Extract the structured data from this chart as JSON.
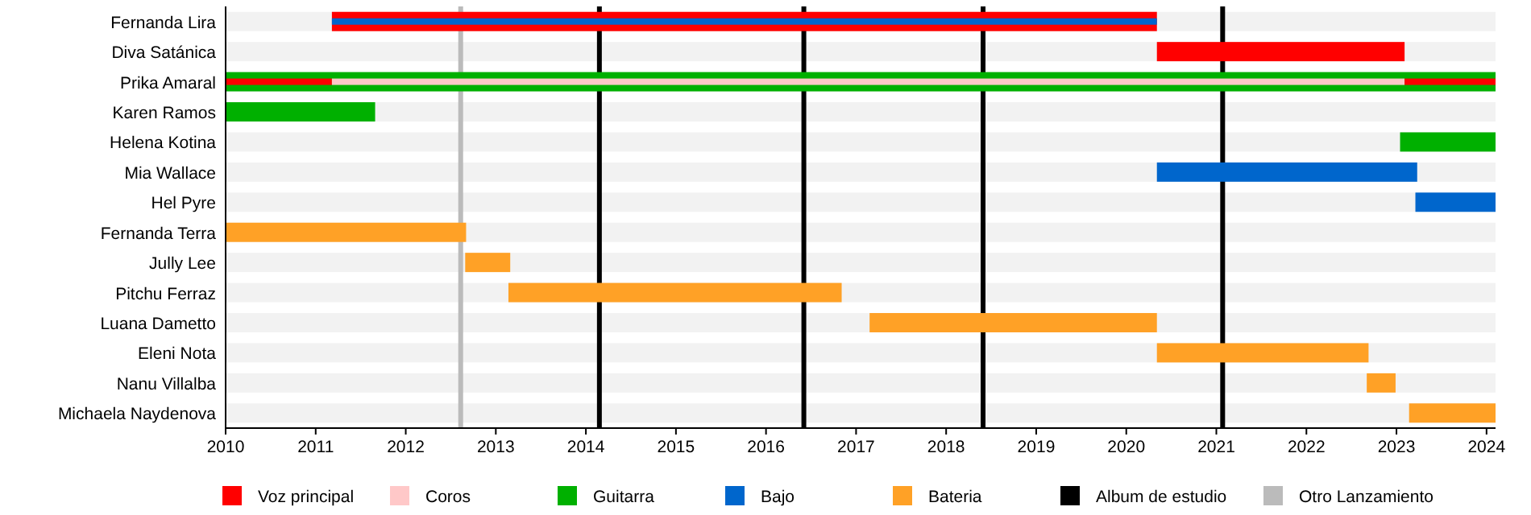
{
  "chart_data": {
    "type": "bar",
    "orientation": "horizontal",
    "categories": [
      "Fernanda Lira",
      "Diva Satánica",
      "Prika Amaral",
      "Karen Ramos",
      "Helena Kotina",
      "Mia Wallace",
      "Hel Pyre",
      "Fernanda Terra",
      "Jully Lee",
      "Pitchu Ferraz",
      "Luana Dametto",
      "Eleni Nota",
      "Nanu Villalba",
      "Michaela Naydenova"
    ],
    "series": [
      {
        "name": "Voz principal",
        "color": "#ff0000",
        "base": [
          2011.18,
          2020.34,
          2010,
          null,
          null,
          null,
          null,
          null,
          null,
          null,
          null,
          null,
          null,
          null
        ],
        "values": [
          9.16,
          2.75,
          1.18,
          null,
          null,
          null,
          null,
          null,
          null,
          null,
          null,
          null,
          null,
          null
        ]
      },
      {
        "name": "Coros",
        "color": "#ffc8c8",
        "base": [
          null,
          null,
          2011.18,
          null,
          null,
          null,
          null,
          null,
          null,
          null,
          null,
          null,
          null,
          null
        ],
        "values": [
          null,
          null,
          11.91,
          null,
          null,
          null,
          null,
          null,
          null,
          null,
          null,
          null,
          null,
          null
        ]
      },
      {
        "name": "Guitarra",
        "color": "#00b000",
        "base": [
          null,
          null,
          2010,
          2010,
          2023.04,
          null,
          null,
          null,
          null,
          null,
          null,
          null,
          null,
          null
        ],
        "values": [
          null,
          null,
          14.1,
          1.66,
          1.06,
          null,
          null,
          null,
          null,
          null,
          null,
          null,
          null,
          null
        ]
      },
      {
        "name": "Bajo",
        "color": "#0066cc",
        "base": [
          2011.18,
          null,
          null,
          null,
          null,
          2020.34,
          2023.21,
          null,
          null,
          null,
          null,
          null,
          null,
          null
        ],
        "values": [
          9.16,
          null,
          null,
          null,
          null,
          2.89,
          0.89,
          null,
          null,
          null,
          null,
          null,
          null,
          null
        ]
      },
      {
        "name": "Bateria",
        "color": "#ffa126",
        "base": [
          null,
          null,
          null,
          null,
          null,
          null,
          null,
          2010,
          2012.66,
          2013.14,
          2017.15,
          2020.34,
          2022.67,
          2023.14
        ],
        "values": [
          null,
          null,
          null,
          null,
          null,
          null,
          null,
          2.67,
          0.5,
          3.7,
          3.19,
          2.35,
          0.32,
          0.96
        ]
      },
      {
        "color": "#ff0000",
        "base": [
          null,
          null,
          2023.09,
          null,
          null,
          null,
          null,
          null,
          null,
          null,
          null,
          null,
          null,
          null
        ],
        "values": [
          null,
          null,
          1.01,
          null,
          null,
          null,
          null,
          null,
          null,
          null,
          null,
          null,
          null,
          null
        ]
      }
    ],
    "xlim": [
      2010,
      2024.1
    ],
    "xticks": [
      2010,
      2011,
      2012,
      2013,
      2014,
      2015,
      2016,
      2017,
      2018,
      2019,
      2020,
      2021,
      2022,
      2023,
      2024
    ],
    "ref_lines": [
      {
        "axis": "x",
        "value": 2014.15,
        "label": "Album de estudio",
        "color": "#000000"
      },
      {
        "axis": "x",
        "value": 2016.42,
        "color": "#000000"
      },
      {
        "axis": "x",
        "value": 2018.41,
        "color": "#000000"
      },
      {
        "axis": "x",
        "value": 2021.07,
        "color": "#000000"
      },
      {
        "axis": "x",
        "value": 2012.61,
        "label": "Otro Lanzamiento",
        "color": "#bbbbbb"
      }
    ],
    "legend": "bottom"
  }
}
